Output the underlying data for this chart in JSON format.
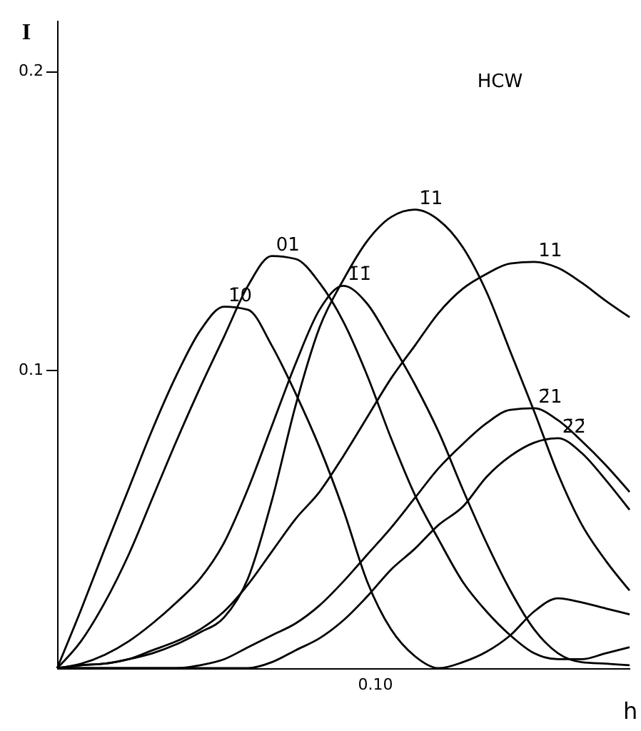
{
  "chart_data": {
    "type": "line",
    "title": "HCW",
    "xlabel": "h",
    "ylabel": "I",
    "categories": [
      null,
      null,
      null,
      null,
      null,
      null,
      null,
      null,
      null,
      null,
      null,
      null,
      null,
      null,
      null,
      null,
      null,
      null,
      null,
      null,
      null,
      null,
      null,
      null,
      null
    ],
    "ylim": [
      0,
      0.217
    ],
    "yticks": [
      {
        "value": 0.1,
        "label": "0.1"
      },
      {
        "value": 0.2,
        "label": "0.2"
      }
    ],
    "grid": false,
    "marker": "none",
    "line_style": "solid",
    "series": [
      {
        "name": "1̄0",
        "color": "#000000",
        "values": [
          0,
          0.0195,
          0.04,
          0.06,
          0.08,
          0.098,
          0.113,
          0.121,
          0.12,
          0.108,
          0.092,
          0.074,
          0.053,
          0.029,
          0.013,
          0.004,
          0,
          0.002,
          0.0055,
          0.011,
          0.019,
          0.0234,
          0.022,
          0.02,
          0.018
        ]
      },
      {
        "name": "01",
        "color": "#000000",
        "values": [
          0,
          0.009,
          0.022,
          0.038,
          0.057,
          0.076,
          0.094,
          0.111,
          0.128,
          0.138,
          0.137,
          0.129,
          0.116,
          0.098,
          0.077,
          0.058,
          0.043,
          0.029,
          0.019,
          0.011,
          0.005,
          0.003,
          0.003,
          0.005,
          0.007
        ]
      },
      {
        "name": "1̄1̄",
        "color": "#000000",
        "values": [
          0,
          0.0015,
          0.0045,
          0.009,
          0.015,
          0.022,
          0.03,
          0.042,
          0.06,
          0.081,
          0.102,
          0.12,
          0.128,
          0.122,
          0.109,
          0.095,
          0.079,
          0.06,
          0.042,
          0.026,
          0.013,
          0.005,
          0.002,
          0.0015,
          0.001
        ]
      },
      {
        "name": "1̄1",
        "color": "#000000",
        "values": [
          0,
          0.001,
          0.0015,
          0.003,
          0.005,
          0.008,
          0.012,
          0.017,
          0.03,
          0.056,
          0.088,
          0.114,
          0.13,
          0.143,
          0.151,
          0.1535,
          0.15,
          0.141,
          0.126,
          0.106,
          0.086,
          0.065,
          0.048,
          0.036,
          0.026
        ]
      },
      {
        "name": "11",
        "color": "#000000",
        "values": [
          0,
          0.001,
          0.0015,
          0.003,
          0.006,
          0.009,
          0.013,
          0.019,
          0.028,
          0.039,
          0.05,
          0.059,
          0.071,
          0.084,
          0.097,
          0.108,
          0.119,
          0.127,
          0.132,
          0.1355,
          0.136,
          0.134,
          0.129,
          0.123,
          0.1175
        ]
      },
      {
        "name": "2̄1",
        "color": "#000000",
        "values": [
          0,
          0,
          0,
          0,
          0,
          0,
          0.001,
          0.003,
          0.007,
          0.011,
          0.015,
          0.021,
          0.029,
          0.038,
          0.047,
          0.057,
          0.067,
          0.075,
          0.082,
          0.0865,
          0.087,
          0.083,
          0.076,
          0.068,
          0.059
        ]
      },
      {
        "name": "2̄2̄",
        "color": "#000000",
        "values": [
          0,
          0,
          0,
          0,
          0,
          0,
          0,
          0,
          0,
          0.002,
          0.006,
          0.01,
          0.016,
          0.024,
          0.033,
          0.04,
          0.048,
          0.054,
          0.064,
          0.071,
          0.0755,
          0.077,
          0.072,
          0.063,
          0.053
        ]
      }
    ],
    "annotations": [
      "0.10"
    ]
  }
}
